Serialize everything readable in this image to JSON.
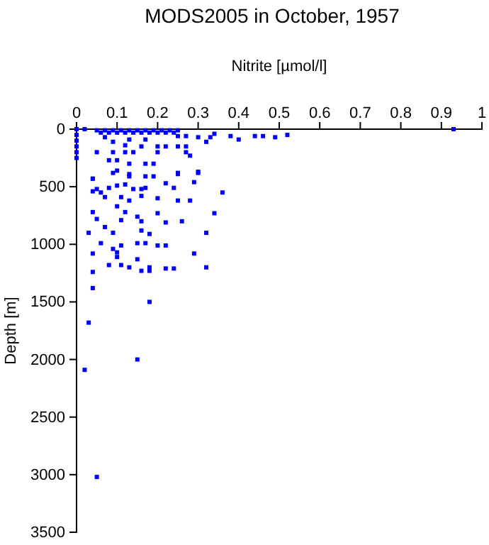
{
  "chart_data": {
    "type": "scatter",
    "title": "MODS2005 in October, 1957",
    "xlabel": "Nitrite [µmol/l]",
    "ylabel": "Depth [m]",
    "marker": "square",
    "xlim": [
      0,
      1
    ],
    "xticks": [
      0,
      0.1,
      0.2,
      0.3,
      0.4,
      0.5,
      0.6,
      0.7,
      0.8,
      0.9,
      1
    ],
    "ylim": [
      3500,
      0
    ],
    "yticks": [
      0,
      500,
      1000,
      1500,
      2000,
      2500,
      3000,
      3500
    ],
    "series": [
      {
        "color": "#0000ff",
        "x": [
          0.0,
          0.02,
          0.05,
          0.07,
          0.09,
          0.11,
          0.13,
          0.15,
          0.17,
          0.19,
          0.21,
          0.23,
          0.25,
          0.06,
          0.08,
          0.1,
          0.12,
          0.14,
          0.16,
          0.18,
          0.2,
          0.22,
          0.24,
          0.93,
          0.52,
          0.49,
          0.46,
          0.44,
          0.4,
          0.38,
          0.34,
          0.33,
          0.32,
          0.3,
          0.27,
          0.27,
          0.25,
          0.25,
          0.22,
          0.2,
          0.16,
          0.17,
          0.13,
          0.12,
          0.09,
          0.07,
          0.05,
          0.09,
          0.12,
          0.14,
          0.2,
          0.27,
          0.28,
          0.08,
          0.1,
          0.13,
          0.17,
          0.19,
          0.25,
          0.3,
          0.04,
          0.1,
          0.13,
          0.0,
          0.0,
          0.0,
          0.0,
          0.0,
          0.04,
          0.09,
          0.13,
          0.17,
          0.19,
          0.25,
          0.3,
          0.29,
          0.22,
          0.04,
          0.05,
          0.06,
          0.08,
          0.1,
          0.12,
          0.14,
          0.16,
          0.17,
          0.24,
          0.36,
          0.07,
          0.11,
          0.13,
          0.16,
          0.2,
          0.25,
          0.28,
          0.1,
          0.04,
          0.12,
          0.2,
          0.34,
          0.05,
          0.11,
          0.15,
          0.16,
          0.22,
          0.26,
          0.07,
          0.09,
          0.16,
          0.18,
          0.32,
          0.03,
          0.06,
          0.11,
          0.15,
          0.17,
          0.2,
          0.22,
          0.09,
          0.1,
          0.1,
          0.04,
          0.15,
          0.29,
          0.08,
          0.11,
          0.13,
          0.16,
          0.18,
          0.18,
          0.22,
          0.24,
          0.32,
          0.04,
          0.04,
          0.18,
          0.03,
          0.02,
          0.15,
          0.05
        ],
        "values": [
          0,
          0,
          10,
          10,
          10,
          10,
          10,
          10,
          10,
          10,
          10,
          10,
          10,
          30,
          30,
          30,
          30,
          30,
          30,
          30,
          30,
          30,
          30,
          0,
          50,
          70,
          60,
          60,
          90,
          60,
          40,
          70,
          110,
          70,
          60,
          150,
          60,
          150,
          150,
          150,
          150,
          90,
          90,
          140,
          110,
          70,
          200,
          200,
          200,
          200,
          200,
          200,
          230,
          270,
          270,
          300,
          300,
          300,
          390,
          380,
          430,
          360,
          390,
          50,
          100,
          150,
          200,
          250,
          430,
          380,
          410,
          410,
          410,
          380,
          370,
          460,
          470,
          540,
          520,
          550,
          510,
          490,
          480,
          520,
          520,
          510,
          510,
          550,
          590,
          590,
          620,
          580,
          600,
          620,
          620,
          670,
          720,
          720,
          730,
          730,
          780,
          790,
          760,
          800,
          810,
          800,
          850,
          900,
          880,
          910,
          900,
          900,
          990,
          1010,
          990,
          990,
          1010,
          1010,
          1040,
          1070,
          1110,
          1080,
          1130,
          1080,
          1180,
          1180,
          1200,
          1230,
          1200,
          1230,
          1210,
          1210,
          1200,
          1240,
          1380,
          1500,
          1680,
          2090,
          2000,
          3020
        ]
      }
    ]
  }
}
